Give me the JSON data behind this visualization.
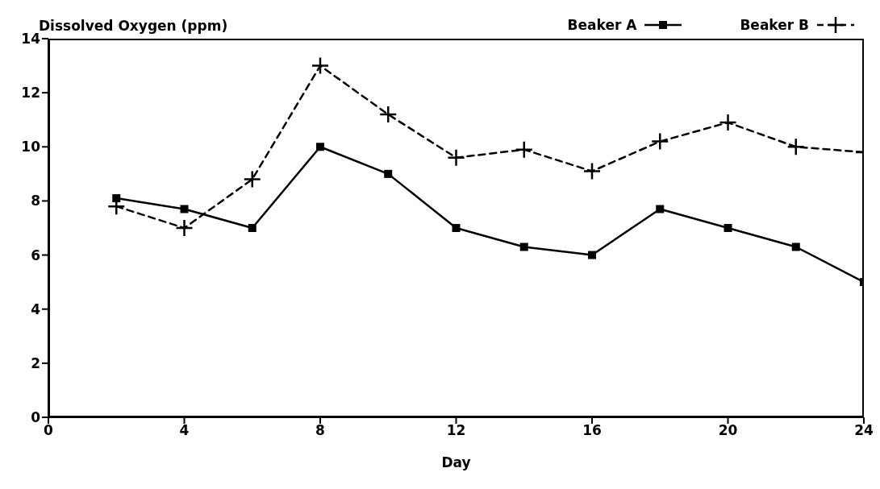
{
  "chart_data": {
    "type": "line",
    "ylabel": "Dissolved Oxygen (ppm)",
    "xlabel": "Day",
    "x": [
      2,
      4,
      6,
      8,
      10,
      12,
      14,
      16,
      18,
      20,
      22,
      24
    ],
    "series": [
      {
        "name": "Beaker A",
        "color": "#000000",
        "marker": "square",
        "line_style": "solid",
        "values": [
          8.1,
          7.7,
          7.0,
          10.0,
          9.0,
          7.0,
          6.3,
          6.0,
          7.7,
          7.0,
          6.3,
          5.0
        ]
      },
      {
        "name": "Beaker B",
        "color": "#000000",
        "marker": "cross",
        "line_style": "dashed",
        "values": [
          7.8,
          7.0,
          8.8,
          13.0,
          11.2,
          9.6,
          9.9,
          9.1,
          10.2,
          10.9,
          10.0,
          9.8
        ]
      }
    ],
    "xlim": [
      0,
      24
    ],
    "xticks": [
      0,
      4,
      8,
      12,
      16,
      20,
      24
    ],
    "ylim": [
      0,
      14
    ],
    "yticks": [
      0,
      2,
      4,
      6,
      8,
      10,
      12,
      14
    ],
    "grid": false,
    "legend": "top right"
  }
}
